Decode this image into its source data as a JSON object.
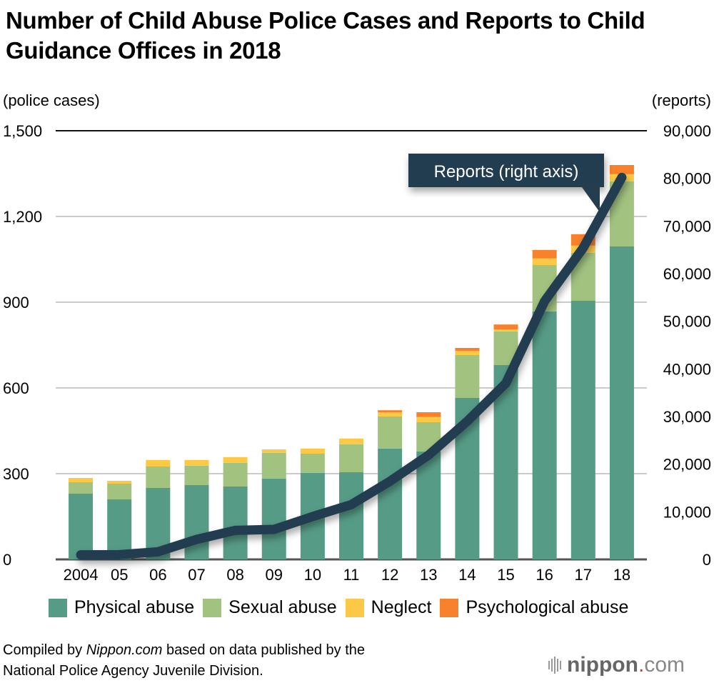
{
  "chart_data": {
    "type": "bar",
    "title": "Number of Child Abuse Police Cases and Reports to Child Guidance Offices in 2018",
    "categories": [
      "2004",
      "05",
      "06",
      "07",
      "08",
      "09",
      "10",
      "11",
      "12",
      "13",
      "14",
      "15",
      "16",
      "17",
      "18"
    ],
    "left_axis": {
      "label": "(police cases)",
      "range": [
        0,
        1500
      ],
      "ticks": [
        0,
        300,
        600,
        900,
        1200,
        1500
      ],
      "tick_labels": [
        "0",
        "300",
        "600",
        "900",
        "1,200",
        "1,500"
      ]
    },
    "right_axis": {
      "label": "(reports)",
      "range": [
        0,
        90000
      ],
      "ticks": [
        0,
        10000,
        20000,
        30000,
        40000,
        50000,
        60000,
        70000,
        80000,
        90000
      ],
      "tick_labels": [
        "0",
        "10,000",
        "20,000",
        "30,000",
        "40,000",
        "50,000",
        "60,000",
        "70,000",
        "80,000",
        "90,000"
      ]
    },
    "grid": true,
    "stacked": true,
    "series": [
      {
        "name": "Physical abuse",
        "color": "#569b86",
        "axis": "left",
        "values": [
          230,
          210,
          250,
          260,
          255,
          283,
          303,
          305,
          388,
          378,
          565,
          680,
          868,
          905,
          1095
        ]
      },
      {
        "name": "Sexual abuse",
        "color": "#a2c280",
        "axis": "left",
        "values": [
          40,
          55,
          75,
          68,
          83,
          90,
          67,
          98,
          112,
          102,
          150,
          118,
          162,
          168,
          228
        ]
      },
      {
        "name": "Neglect",
        "color": "#fcc946",
        "axis": "left",
        "values": [
          15,
          10,
          23,
          20,
          20,
          12,
          18,
          20,
          15,
          18,
          15,
          7,
          23,
          25,
          25
        ]
      },
      {
        "name": "Psychological abuse",
        "color": "#f8812b",
        "axis": "left",
        "values": [
          0,
          0,
          0,
          0,
          0,
          0,
          0,
          0,
          7,
          17,
          10,
          17,
          30,
          40,
          32
        ]
      }
    ],
    "line_series": {
      "name": "Reports",
      "type": "line",
      "axis": "right",
      "color": "#243d4f",
      "values": [
        962,
        1001,
        1600,
        4200,
        6100,
        6300,
        9000,
        11500,
        16400,
        21900,
        29000,
        37000,
        54200,
        65400,
        80200
      ]
    },
    "annotation": {
      "text": "Reports (right axis)",
      "points_to": "18"
    },
    "legend_placement": "bottom"
  },
  "footer": {
    "source_prefix": "Compiled by ",
    "source_italic": "Nippon.com",
    "source_suffix": " based on data published by the",
    "source_line2": "National Police Agency Juvenile Division.",
    "logo_main": "nippon",
    "logo_dot": ".",
    "logo_tld": "com"
  }
}
